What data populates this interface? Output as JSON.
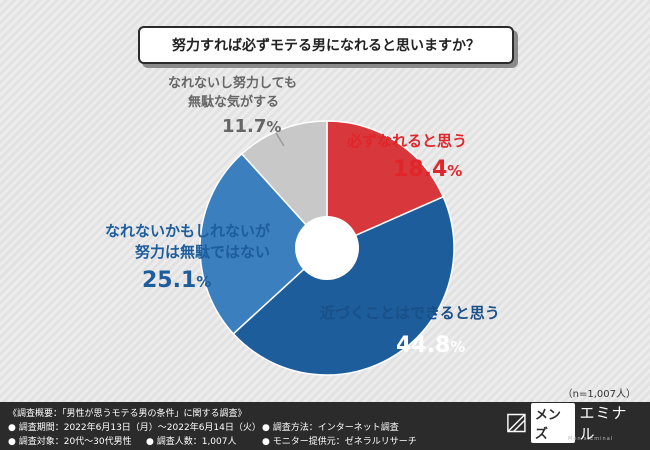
{
  "title": "努力すれば必ずモテる男になれると思いますか？",
  "sample_note": "（n=1,007人）",
  "chart_data": {
    "type": "pie",
    "title": "努力すれば必ずモテる男になれると思いますか？",
    "slices": [
      {
        "label_line1": "必ずなれると思う",
        "label_line2": "",
        "value": 18.4,
        "value_text": "18.4",
        "color": "#d8383b"
      },
      {
        "label_line1": "近づくことはできると思う",
        "label_line2": "",
        "value": 44.8,
        "value_text": "44.8",
        "color": "#1d5d9b"
      },
      {
        "label_line1": "なれないかもしれないが",
        "label_line2": "努力は無駄ではない",
        "value": 25.1,
        "value_text": "25.1",
        "color": "#3b7fbf"
      },
      {
        "label_line1": "なれないし努力しても",
        "label_line2": "無駄な気がする",
        "value": 11.7,
        "value_text": "11.7",
        "color": "#c8c8c8"
      }
    ],
    "percent_sign": "%"
  },
  "footer": {
    "summary": "《調査概要：「男性が思うモテる男の条件」に関する調査》",
    "period": "● 調査期間：2022年6月13日（月）〜2022年6月14日（火）",
    "target": "● 調査対象：20代〜30代男性",
    "count": "● 調査人数：1,007人",
    "method": "● 調査方法：インターネット調査",
    "provider": "● モニター提供元：ゼネラルリサーチ"
  },
  "brand": {
    "part1": "メンズ",
    "part2": "エミナル",
    "sub": "Men's Eminal"
  }
}
